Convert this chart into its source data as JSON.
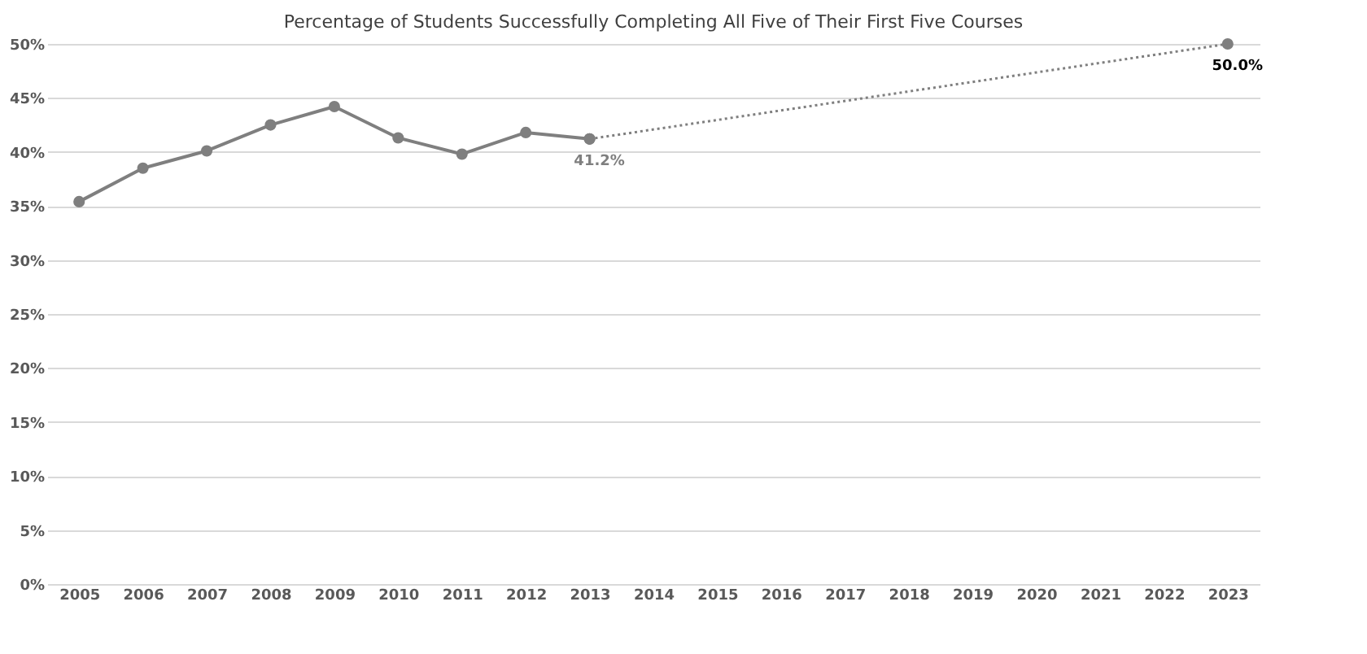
{
  "chart_data": {
    "type": "line",
    "title": "Percentage of Students Successfully Completing All Five of Their First Five Courses",
    "categories": [
      "2005",
      "2006",
      "2007",
      "2008",
      "2009",
      "2010",
      "2011",
      "2012",
      "2013",
      "2014",
      "2015",
      "2016",
      "2017",
      "2018",
      "2019",
      "2020",
      "2021",
      "2022",
      "2023"
    ],
    "series": [
      {
        "color": "#7f7f7f",
        "line_style": "solid",
        "marker": "circle",
        "values": [
          35.4,
          38.5,
          40.1,
          42.5,
          44.2,
          41.3,
          39.8,
          41.8,
          41.2,
          null,
          null,
          null,
          null,
          null,
          null,
          null,
          null,
          null,
          null
        ],
        "value_labels": [
          null,
          null,
          null,
          null,
          null,
          null,
          null,
          null,
          "41.2%",
          null,
          null,
          null,
          null,
          null,
          null,
          null,
          null,
          null,
          null
        ]
      },
      {
        "color": "#7f7f7f",
        "line_style": "dotted",
        "marker": "circle",
        "values": [
          null,
          null,
          null,
          null,
          null,
          null,
          null,
          null,
          41.2,
          null,
          null,
          null,
          null,
          null,
          null,
          null,
          null,
          null,
          50.0
        ],
        "value_labels": [
          null,
          null,
          null,
          null,
          null,
          null,
          null,
          null,
          null,
          null,
          null,
          null,
          null,
          null,
          null,
          null,
          null,
          null,
          "50.0%"
        ]
      }
    ],
    "ylim": [
      0,
      50
    ],
    "yticks": [
      {
        "value": 0,
        "label": "0%"
      },
      {
        "value": 5,
        "label": "5%"
      },
      {
        "value": 10,
        "label": "10%"
      },
      {
        "value": 15,
        "label": "15%"
      },
      {
        "value": 20,
        "label": "20%"
      },
      {
        "value": 25,
        "label": "25%"
      },
      {
        "value": 30,
        "label": "30%"
      },
      {
        "value": 35,
        "label": "35%"
      },
      {
        "value": 40,
        "label": "40%"
      },
      {
        "value": 45,
        "label": "45%"
      },
      {
        "value": 50,
        "label": "50%"
      }
    ],
    "grid": "y"
  }
}
